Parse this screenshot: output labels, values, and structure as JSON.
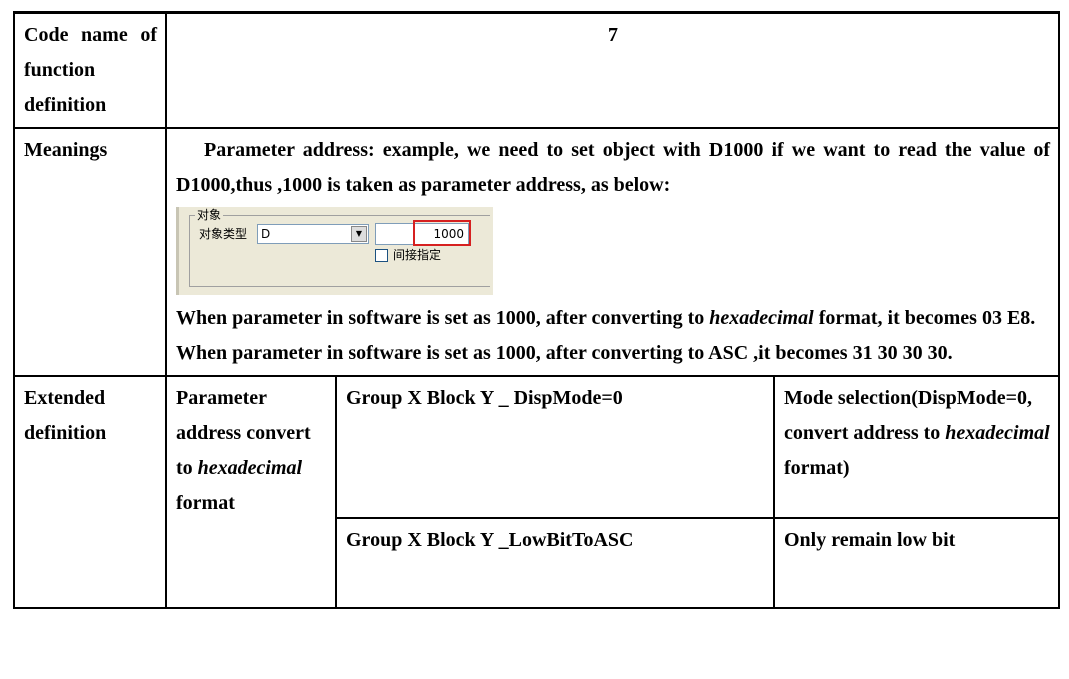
{
  "table": {
    "rows": [
      {
        "header": "Code name of function definition",
        "value": "7"
      },
      {
        "header": "Meanings",
        "paragraphs": [
          [
            "Parameter address: example, we need to set object with D1000 if we want to read the value of D1000,thus ,1000 is taken as parameter address, as below:"
          ],
          [
            "When parameter in software is set as 1000, after converting to ",
            "hexadecimal",
            " format, it becomes 03 E8."
          ],
          [
            "When parameter in software is set as 1000, after converting to ASC ,it becomes 31 30 30 30."
          ]
        ],
        "screenshot": {
          "group_title": "对象",
          "type_label": "对象类型",
          "type_value": "D",
          "address_value": "1000",
          "checkbox_label": "间接指定"
        },
        "paragraph_after_screenshot_index": 1
      },
      {
        "header": "Extended definition",
        "item": [
          "Parameter address convert to ",
          "hexadecimal",
          " format"
        ],
        "entries": [
          {
            "name": "Group X Block Y _ DispMode=0",
            "description": [
              "Mode selection(DispMode=0, convert address to ",
              "hexadecimal",
              " format)"
            ]
          },
          {
            "name": "Group X Block Y _LowBitToASC",
            "description": [
              "Only remain low bit"
            ]
          }
        ]
      }
    ]
  }
}
